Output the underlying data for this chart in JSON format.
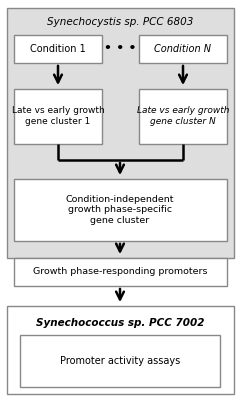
{
  "fig_width": 2.41,
  "fig_height": 4.0,
  "dpi": 100,
  "background_color": "#ffffff",
  "gray_bg": "#dedede",
  "white_box": "#ffffff",
  "border_color": "#888888",
  "text_color": "#000000",
  "synechocystis_title": "Synechocystis sp. PCC 6803",
  "synechococcus_title": "Synechococcus sp. PCC 7002",
  "condition1_label": "Condition 1",
  "conditionN_label": "Condition N",
  "cluster1_label": "Late vs early growth\ngene cluster 1",
  "clusterN_label": "Late vs early growth\ngene cluster N",
  "ci_cluster_label": "Condition-independent\ngrowth phase-specific\ngene cluster",
  "promoters_label": "Growth phase-responding promoters",
  "assays_label": "Promoter activity assays",
  "dots_label": "• • •",
  "lw": 1.0
}
